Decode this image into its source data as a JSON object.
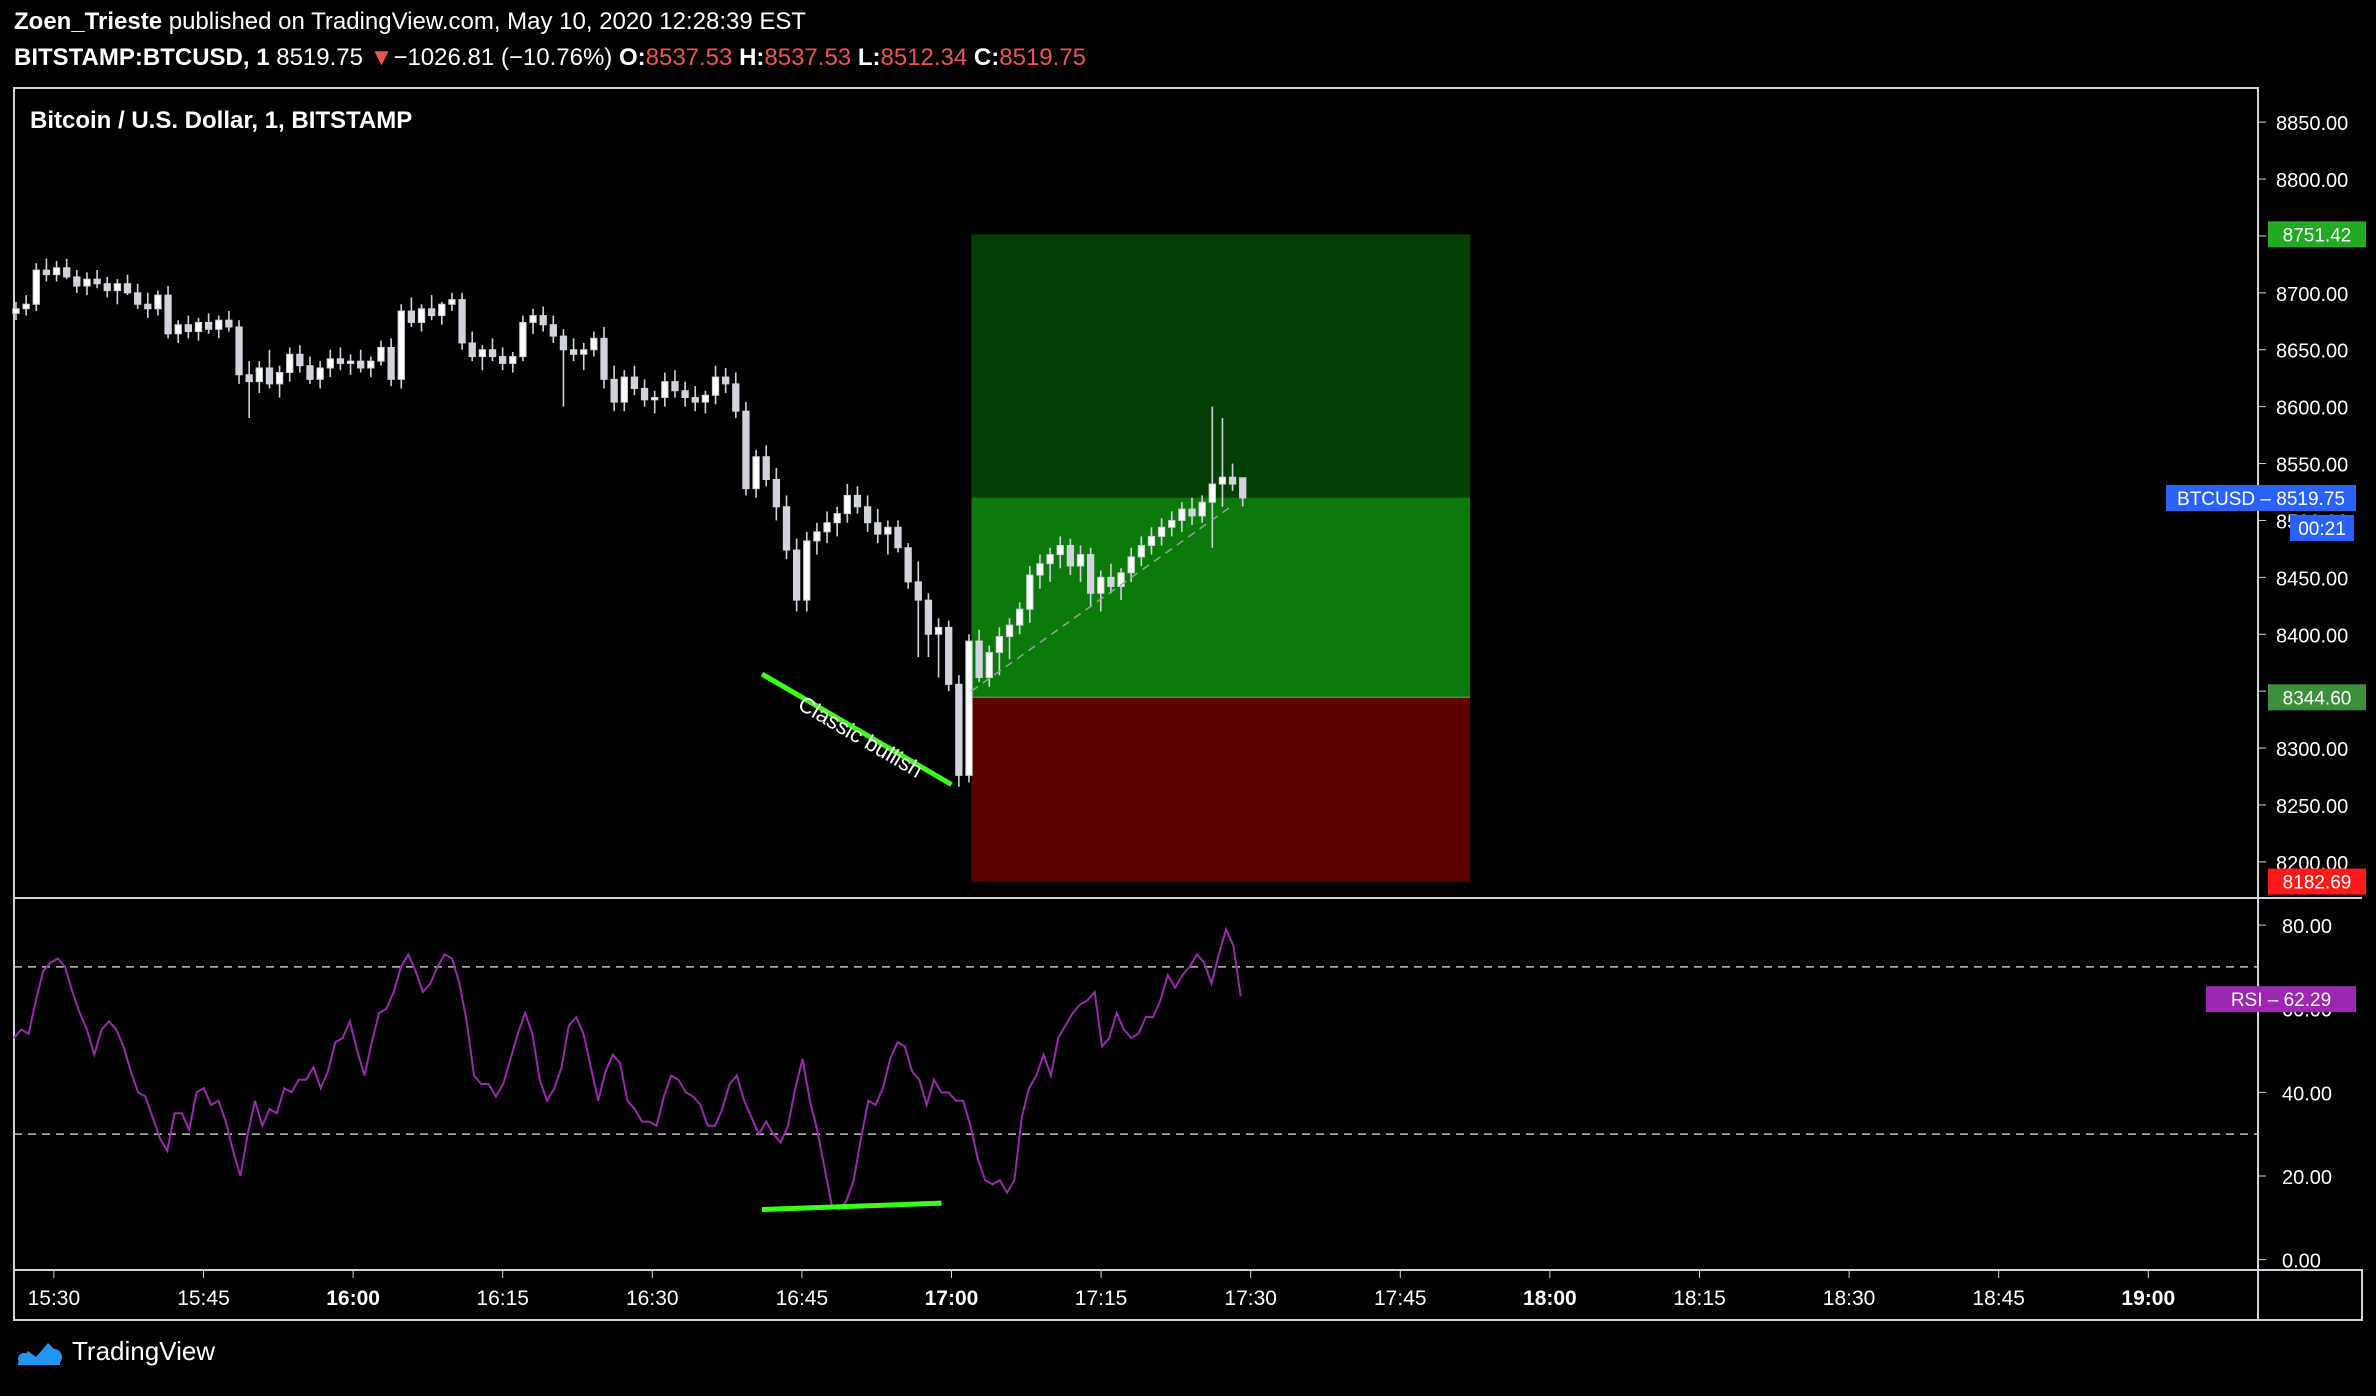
{
  "header": {
    "author": "Zoen_Trieste",
    "published": "published on TradingView.com, May 10, 2020 12:28:39 EST",
    "symbol": "BITSTAMP:BTCUSD, 1",
    "last": "8519.75",
    "change_arrow": "▼",
    "change": "−1026.81 (−10.76%)",
    "o_label": "O:",
    "o": "8537.53",
    "h_label": "H:",
    "h": "8537.53",
    "l_label": "L:",
    "l": "8512.34",
    "c_label": "C:",
    "c": "8519.75"
  },
  "footer": {
    "brand": "TradingView",
    "logo_icon": "tradingview-logo-icon"
  },
  "colors": {
    "candle": "#d1d4dc",
    "rsi": "#9c27b0",
    "divergence": "#39ff14",
    "profit": "#0b7a0b",
    "profit_dark": "#063f06",
    "loss": "#5c0000",
    "price_tag": "#2962ff",
    "target_tag": "#22ab22",
    "entry_tag": "#3d8f3d",
    "stop_tag": "#ff1a1a"
  },
  "chart_data": [
    {
      "type": "candlestick",
      "title": "Bitcoin / U.S. Dollar, 1, BITSTAMP",
      "ylim": [
        8170,
        8880
      ],
      "y_ticks": [
        "8850.00",
        "8800.00",
        "8750.00",
        "8700.00",
        "8650.00",
        "8600.00",
        "8550.00",
        "8500.00",
        "8450.00",
        "8400.00",
        "8350.00",
        "8300.00",
        "8250.00",
        "8200.00"
      ],
      "x_ticks": [
        "15:30",
        "15:45",
        "16:00",
        "16:15",
        "16:30",
        "16:45",
        "17:00",
        "17:15",
        "17:30",
        "17:45",
        "18:00",
        "18:15",
        "18:30",
        "18:45",
        "19:00"
      ],
      "x_range_minutes": [
        926,
        1151
      ],
      "x_tick_minutes": [
        930,
        945,
        960,
        975,
        990,
        1005,
        1020,
        1035,
        1050,
        1065,
        1080,
        1095,
        1110,
        1125,
        1140
      ],
      "candles_ohlc": [
        [
          8682,
          8692,
          8676,
          8686
        ],
        [
          8686,
          8698,
          8680,
          8690
        ],
        [
          8690,
          8726,
          8684,
          8720
        ],
        [
          8720,
          8730,
          8710,
          8716
        ],
        [
          8716,
          8728,
          8710,
          8722
        ],
        [
          8722,
          8730,
          8712,
          8714
        ],
        [
          8714,
          8720,
          8700,
          8706
        ],
        [
          8706,
          8718,
          8698,
          8712
        ],
        [
          8712,
          8720,
          8704,
          8708
        ],
        [
          8708,
          8714,
          8696,
          8702
        ],
        [
          8702,
          8712,
          8690,
          8708
        ],
        [
          8708,
          8716,
          8698,
          8700
        ],
        [
          8700,
          8708,
          8686,
          8690
        ],
        [
          8690,
          8700,
          8678,
          8686
        ],
        [
          8686,
          8702,
          8680,
          8698
        ],
        [
          8698,
          8706,
          8660,
          8664
        ],
        [
          8664,
          8676,
          8656,
          8672
        ],
        [
          8672,
          8680,
          8660,
          8666
        ],
        [
          8666,
          8678,
          8658,
          8674
        ],
        [
          8674,
          8682,
          8664,
          8668
        ],
        [
          8668,
          8680,
          8660,
          8676
        ],
        [
          8676,
          8684,
          8666,
          8670
        ],
        [
          8670,
          8676,
          8620,
          8628
        ],
        [
          8628,
          8640,
          8590,
          8622
        ],
        [
          8622,
          8640,
          8612,
          8634
        ],
        [
          8634,
          8650,
          8616,
          8620
        ],
        [
          8620,
          8636,
          8608,
          8630
        ],
        [
          8630,
          8652,
          8622,
          8646
        ],
        [
          8646,
          8654,
          8630,
          8636
        ],
        [
          8636,
          8644,
          8620,
          8624
        ],
        [
          8624,
          8640,
          8616,
          8634
        ],
        [
          8634,
          8650,
          8626,
          8642
        ],
        [
          8642,
          8652,
          8632,
          8638
        ],
        [
          8638,
          8646,
          8628,
          8640
        ],
        [
          8640,
          8650,
          8630,
          8634
        ],
        [
          8634,
          8644,
          8626,
          8640
        ],
        [
          8640,
          8658,
          8636,
          8652
        ],
        [
          8652,
          8660,
          8618,
          8624
        ],
        [
          8624,
          8690,
          8616,
          8684
        ],
        [
          8684,
          8696,
          8670,
          8674
        ],
        [
          8674,
          8690,
          8666,
          8686
        ],
        [
          8686,
          8698,
          8676,
          8680
        ],
        [
          8680,
          8692,
          8672,
          8690
        ],
        [
          8690,
          8700,
          8684,
          8694
        ],
        [
          8694,
          8700,
          8650,
          8656
        ],
        [
          8656,
          8666,
          8640,
          8644
        ],
        [
          8644,
          8654,
          8632,
          8650
        ],
        [
          8650,
          8660,
          8640,
          8644
        ],
        [
          8644,
          8652,
          8632,
          8638
        ],
        [
          8638,
          8648,
          8630,
          8644
        ],
        [
          8644,
          8680,
          8640,
          8674
        ],
        [
          8674,
          8686,
          8664,
          8680
        ],
        [
          8680,
          8688,
          8666,
          8672
        ],
        [
          8672,
          8680,
          8656,
          8662
        ],
        [
          8662,
          8668,
          8600,
          8650
        ],
        [
          8650,
          8660,
          8640,
          8646
        ],
        [
          8646,
          8656,
          8632,
          8650
        ],
        [
          8650,
          8666,
          8644,
          8660
        ],
        [
          8660,
          8670,
          8616,
          8624
        ],
        [
          8624,
          8636,
          8596,
          8604
        ],
        [
          8604,
          8632,
          8596,
          8626
        ],
        [
          8626,
          8636,
          8610,
          8616
        ],
        [
          8616,
          8624,
          8600,
          8606
        ],
        [
          8606,
          8614,
          8594,
          8608
        ],
        [
          8608,
          8630,
          8600,
          8622
        ],
        [
          8622,
          8632,
          8608,
          8614
        ],
        [
          8614,
          8622,
          8600,
          8608
        ],
        [
          8608,
          8618,
          8596,
          8604
        ],
        [
          8604,
          8614,
          8594,
          8610
        ],
        [
          8610,
          8636,
          8602,
          8626
        ],
        [
          8626,
          8634,
          8612,
          8620
        ],
        [
          8620,
          8630,
          8590,
          8596
        ],
        [
          8596,
          8604,
          8522,
          8528
        ],
        [
          8528,
          8562,
          8520,
          8556
        ],
        [
          8556,
          8566,
          8530,
          8536
        ],
        [
          8536,
          8546,
          8500,
          8512
        ],
        [
          8512,
          8522,
          8466,
          8474
        ],
        [
          8474,
          8484,
          8420,
          8430
        ],
        [
          8430,
          8490,
          8420,
          8482
        ],
        [
          8482,
          8498,
          8470,
          8490
        ],
        [
          8490,
          8508,
          8480,
          8498
        ],
        [
          8498,
          8512,
          8486,
          8506
        ],
        [
          8506,
          8532,
          8498,
          8522
        ],
        [
          8522,
          8530,
          8506,
          8512
        ],
        [
          8512,
          8522,
          8490,
          8498
        ],
        [
          8498,
          8510,
          8480,
          8488
        ],
        [
          8488,
          8500,
          8470,
          8494
        ],
        [
          8494,
          8500,
          8472,
          8476
        ],
        [
          8476,
          8480,
          8440,
          8446
        ],
        [
          8446,
          8464,
          8380,
          8430
        ],
        [
          8430,
          8436,
          8380,
          8400
        ],
        [
          8400,
          8414,
          8362,
          8406
        ],
        [
          8406,
          8412,
          8350,
          8356
        ],
        [
          8356,
          8364,
          8266,
          8276
        ],
        [
          8276,
          8400,
          8270,
          8394
        ],
        [
          8394,
          8404,
          8358,
          8362
        ],
        [
          8362,
          8390,
          8354,
          8384
        ],
        [
          8384,
          8406,
          8364,
          8398
        ],
        [
          8398,
          8414,
          8378,
          8408
        ],
        [
          8408,
          8428,
          8400,
          8422
        ],
        [
          8422,
          8460,
          8410,
          8452
        ],
        [
          8452,
          8470,
          8440,
          8462
        ],
        [
          8462,
          8476,
          8446,
          8470
        ],
        [
          8470,
          8486,
          8458,
          8478
        ],
        [
          8478,
          8484,
          8452,
          8460
        ],
        [
          8460,
          8478,
          8446,
          8470
        ],
        [
          8470,
          8476,
          8424,
          8436
        ],
        [
          8436,
          8456,
          8420,
          8450
        ],
        [
          8450,
          8462,
          8436,
          8442
        ],
        [
          8442,
          8458,
          8430,
          8454
        ],
        [
          8454,
          8476,
          8446,
          8468
        ],
        [
          8468,
          8486,
          8460,
          8478
        ],
        [
          8478,
          8494,
          8470,
          8486
        ],
        [
          8486,
          8502,
          8478,
          8494
        ],
        [
          8494,
          8508,
          8486,
          8500
        ],
        [
          8500,
          8516,
          8490,
          8510
        ],
        [
          8510,
          8520,
          8496,
          8504
        ],
        [
          8504,
          8522,
          8498,
          8516
        ],
        [
          8516,
          8600,
          8476,
          8532
        ],
        [
          8532,
          8590,
          8512,
          8538
        ],
        [
          8538,
          8550,
          8526,
          8532
        ],
        [
          8537.53,
          8537.53,
          8512.34,
          8519.75
        ]
      ],
      "risk_reward": {
        "target": 8751.42,
        "entry": 8344.6,
        "stop": 8182.69,
        "start_minute": 1022,
        "end_minute": 1072
      },
      "price_labels": {
        "target": "8751.42",
        "current_name": "BTCUSD",
        "current": "8519.75",
        "countdown": "00:21",
        "entry": "8344.60",
        "stop": "8182.69"
      },
      "annotation": {
        "text": "Classic bullish",
        "from": [
          1001,
          8365
        ],
        "to": [
          1020,
          8268
        ]
      }
    },
    {
      "type": "line",
      "series_name": "RSI",
      "ylim": [
        -2,
        86
      ],
      "y_ticks": [
        "80.00",
        "60.00",
        "40.00",
        "20.00",
        "0.00"
      ],
      "levels": [
        70,
        30
      ],
      "current": "62.29",
      "values": [
        53,
        55,
        54,
        62,
        69,
        71,
        72,
        70,
        64,
        59,
        55,
        49,
        55,
        57,
        55,
        51,
        45,
        40,
        39,
        34,
        29,
        26,
        35,
        35,
        31,
        40,
        41,
        37,
        38,
        33,
        26,
        20,
        30,
        38,
        32,
        36,
        35,
        41,
        40,
        43,
        43,
        46,
        41,
        45,
        52,
        53,
        57,
        50,
        44,
        52,
        59,
        60,
        64,
        70,
        73,
        69,
        64,
        66,
        70,
        73,
        72,
        66,
        57,
        44,
        42,
        42,
        39,
        42,
        48,
        54,
        59,
        54,
        43,
        38,
        41,
        46,
        56,
        58,
        54,
        46,
        38,
        45,
        49,
        47,
        38,
        36,
        33,
        33,
        32,
        39,
        44,
        43,
        40,
        39,
        37,
        32,
        32,
        36,
        42,
        44,
        38,
        34,
        30,
        33,
        30,
        28,
        32,
        41,
        48,
        38,
        31,
        22,
        13,
        12,
        14,
        19,
        29,
        38,
        37,
        41,
        48,
        52,
        51,
        45,
        43,
        37,
        43,
        40,
        40,
        38,
        38,
        32,
        24,
        19,
        18,
        19,
        16,
        19,
        34,
        41,
        44,
        49,
        44,
        53,
        56,
        59,
        61,
        62,
        64,
        51,
        53,
        59,
        55,
        53,
        54,
        58,
        58,
        62,
        68,
        65,
        68,
        70,
        73,
        71,
        66,
        73,
        79,
        75,
        63
      ],
      "divergence": {
        "from": [
          1001,
          12
        ],
        "to": [
          1019,
          13.5
        ]
      }
    }
  ]
}
